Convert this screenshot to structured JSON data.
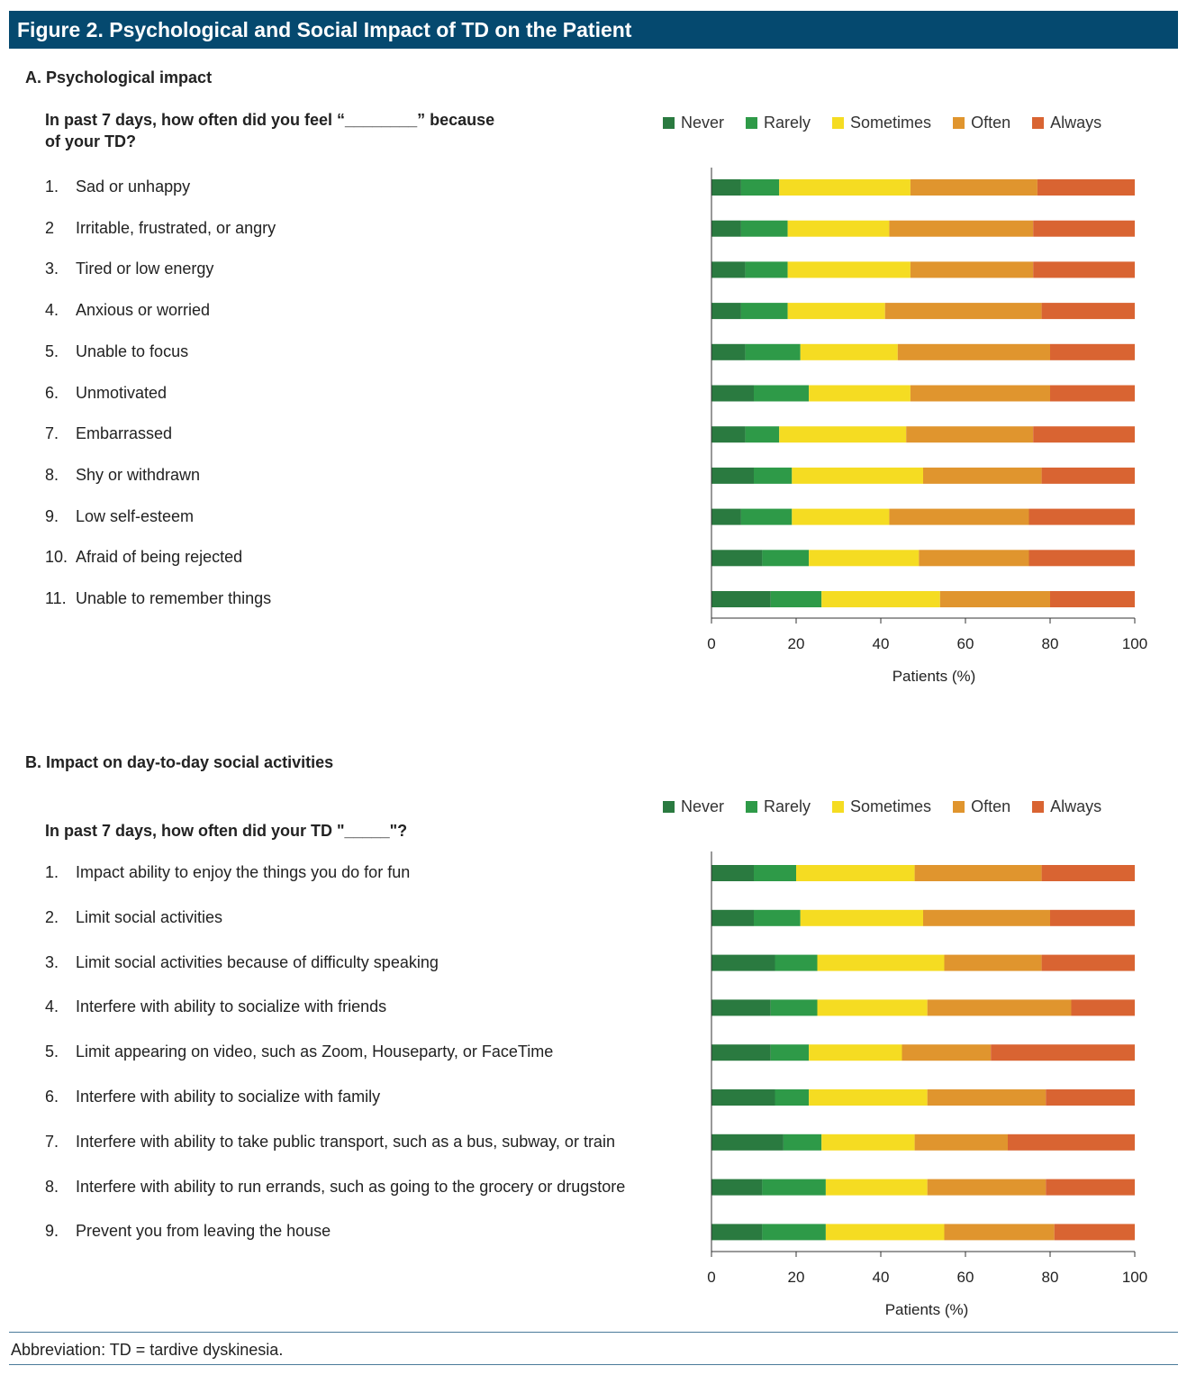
{
  "figure": {
    "title": "Figure 2. Psychological and Social Impact of TD on the Patient",
    "footnote": "Abbreviation: TD = tardive dyskinesia."
  },
  "colors": {
    "header_bg": "#05496f",
    "Never": "#2a7a40",
    "Rarely": "#2e9a48",
    "Sometimes": "#f5dc22",
    "Often": "#e0952e",
    "Always": "#d96432"
  },
  "legend": [
    "Never",
    "Rarely",
    "Sometimes",
    "Often",
    "Always"
  ],
  "panelA": {
    "section_title": "A. Psychological  impact",
    "question_line1": "In past 7 days, how often did you feel “________” because",
    "question_line2": "of your TD?",
    "items": [
      {
        "num": "1.",
        "label": "Sad or unhappy"
      },
      {
        "num": "2",
        "label": "Irritable, frustrated, or angry"
      },
      {
        "num": "3.",
        "label": "Tired or low energy"
      },
      {
        "num": "4.",
        "label": "Anxious  or worried"
      },
      {
        "num": "5.",
        "label": "Unable  to focus"
      },
      {
        "num": "6.",
        "label": "Unmotivated"
      },
      {
        "num": "7.",
        "label": "Embarrassed"
      },
      {
        "num": "8.",
        "label": "Shy or withdrawn"
      },
      {
        "num": "9.",
        "label": "Low self-esteem"
      },
      {
        "num": "10.",
        "label": "Afraid of being rejected"
      },
      {
        "num": "11.",
        "label": "Unable  to remember things"
      }
    ],
    "xlabel": "Patients (%)"
  },
  "panelB": {
    "section_title": "B. Impact on day-to-day social activities",
    "question_line1": "In past 7 days, how often did your TD \"_____\"?",
    "items": [
      {
        "num": "1.",
        "label": "Impact ability to enjoy the things you do for fun"
      },
      {
        "num": "2.",
        "label": "Limit social activities"
      },
      {
        "num": "3.",
        "label": "Limit social activities because of difficulty speaking"
      },
      {
        "num": "4.",
        "label": "Interfere with ability to socialize with friends"
      },
      {
        "num": "5.",
        "label": "Limit appearing on video, such as Zoom, Houseparty, or FaceTime"
      },
      {
        "num": "6.",
        "label": "Interfere with ability to socialize with family"
      },
      {
        "num": "7.",
        "label": "Interfere with ability to take public transport, such as a bus, subway, or train"
      },
      {
        "num": "8.",
        "label": "Interfere with ability to run errands, such as going to the grocery or drugstore"
      },
      {
        "num": "9.",
        "label": "Prevent you from leaving the house"
      }
    ],
    "xlabel": "Patients (%)"
  },
  "chart_data": [
    {
      "type": "bar",
      "orientation": "horizontal",
      "stacked": true,
      "title": "A. Psychological  impact",
      "xlabel": "Patients (%)",
      "xlim": [
        0,
        100
      ],
      "xticks": [
        0,
        20,
        40,
        60,
        80,
        100
      ],
      "categories": [
        "Sad or unhappy",
        "Irritable, frustrated, or angry",
        "Tired or low energy",
        "Anxious  or worried",
        "Unable  to focus",
        "Unmotivated",
        "Embarrassed",
        "Shy or withdrawn",
        "Low self-esteem",
        "Afraid of being rejected",
        "Unable  to remember things"
      ],
      "series": [
        {
          "name": "Never",
          "values": [
            7,
            7,
            8,
            7,
            8,
            10,
            8,
            10,
            7,
            12,
            14
          ]
        },
        {
          "name": "Rarely",
          "values": [
            9,
            11,
            10,
            11,
            13,
            13,
            8,
            9,
            12,
            11,
            12
          ]
        },
        {
          "name": "Sometimes",
          "values": [
            31,
            24,
            29,
            23,
            23,
            24,
            30,
            31,
            23,
            26,
            28
          ]
        },
        {
          "name": "Often",
          "values": [
            30,
            34,
            29,
            37,
            36,
            33,
            30,
            28,
            33,
            26,
            26
          ]
        },
        {
          "name": "Always",
          "values": [
            23,
            24,
            24,
            22,
            20,
            20,
            24,
            22,
            25,
            25,
            20
          ]
        }
      ],
      "legend_position": "top-right"
    },
    {
      "type": "bar",
      "orientation": "horizontal",
      "stacked": true,
      "title": "B. Impact on day-to-day social activities",
      "xlabel": "Patients (%)",
      "xlim": [
        0,
        100
      ],
      "xticks": [
        0,
        20,
        40,
        60,
        80,
        100
      ],
      "categories": [
        "Impact ability to enjoy the things you do for fun",
        "Limit social activities",
        "Limit social activities because of difficulty speaking",
        "Interfere with ability to socialize with friends",
        "Limit appearing on video, such as Zoom, Houseparty, or FaceTime",
        "Interfere with ability to socialize with family",
        "Interfere with ability to take public transport, such as a bus, subway, or train",
        "Interfere with ability to run errands, such as going to the grocery or drugstore",
        "Prevent you from leaving the house"
      ],
      "series": [
        {
          "name": "Never",
          "values": [
            10,
            10,
            15,
            14,
            14,
            15,
            17,
            12,
            12
          ]
        },
        {
          "name": "Rarely",
          "values": [
            10,
            11,
            10,
            11,
            9,
            8,
            9,
            15,
            15
          ]
        },
        {
          "name": "Sometimes",
          "values": [
            28,
            29,
            30,
            26,
            22,
            28,
            22,
            24,
            28
          ]
        },
        {
          "name": "Often",
          "values": [
            30,
            30,
            23,
            34,
            21,
            28,
            22,
            28,
            26
          ]
        },
        {
          "name": "Always",
          "values": [
            22,
            20,
            22,
            15,
            34,
            21,
            30,
            21,
            19
          ]
        }
      ],
      "legend_position": "top-right"
    }
  ]
}
